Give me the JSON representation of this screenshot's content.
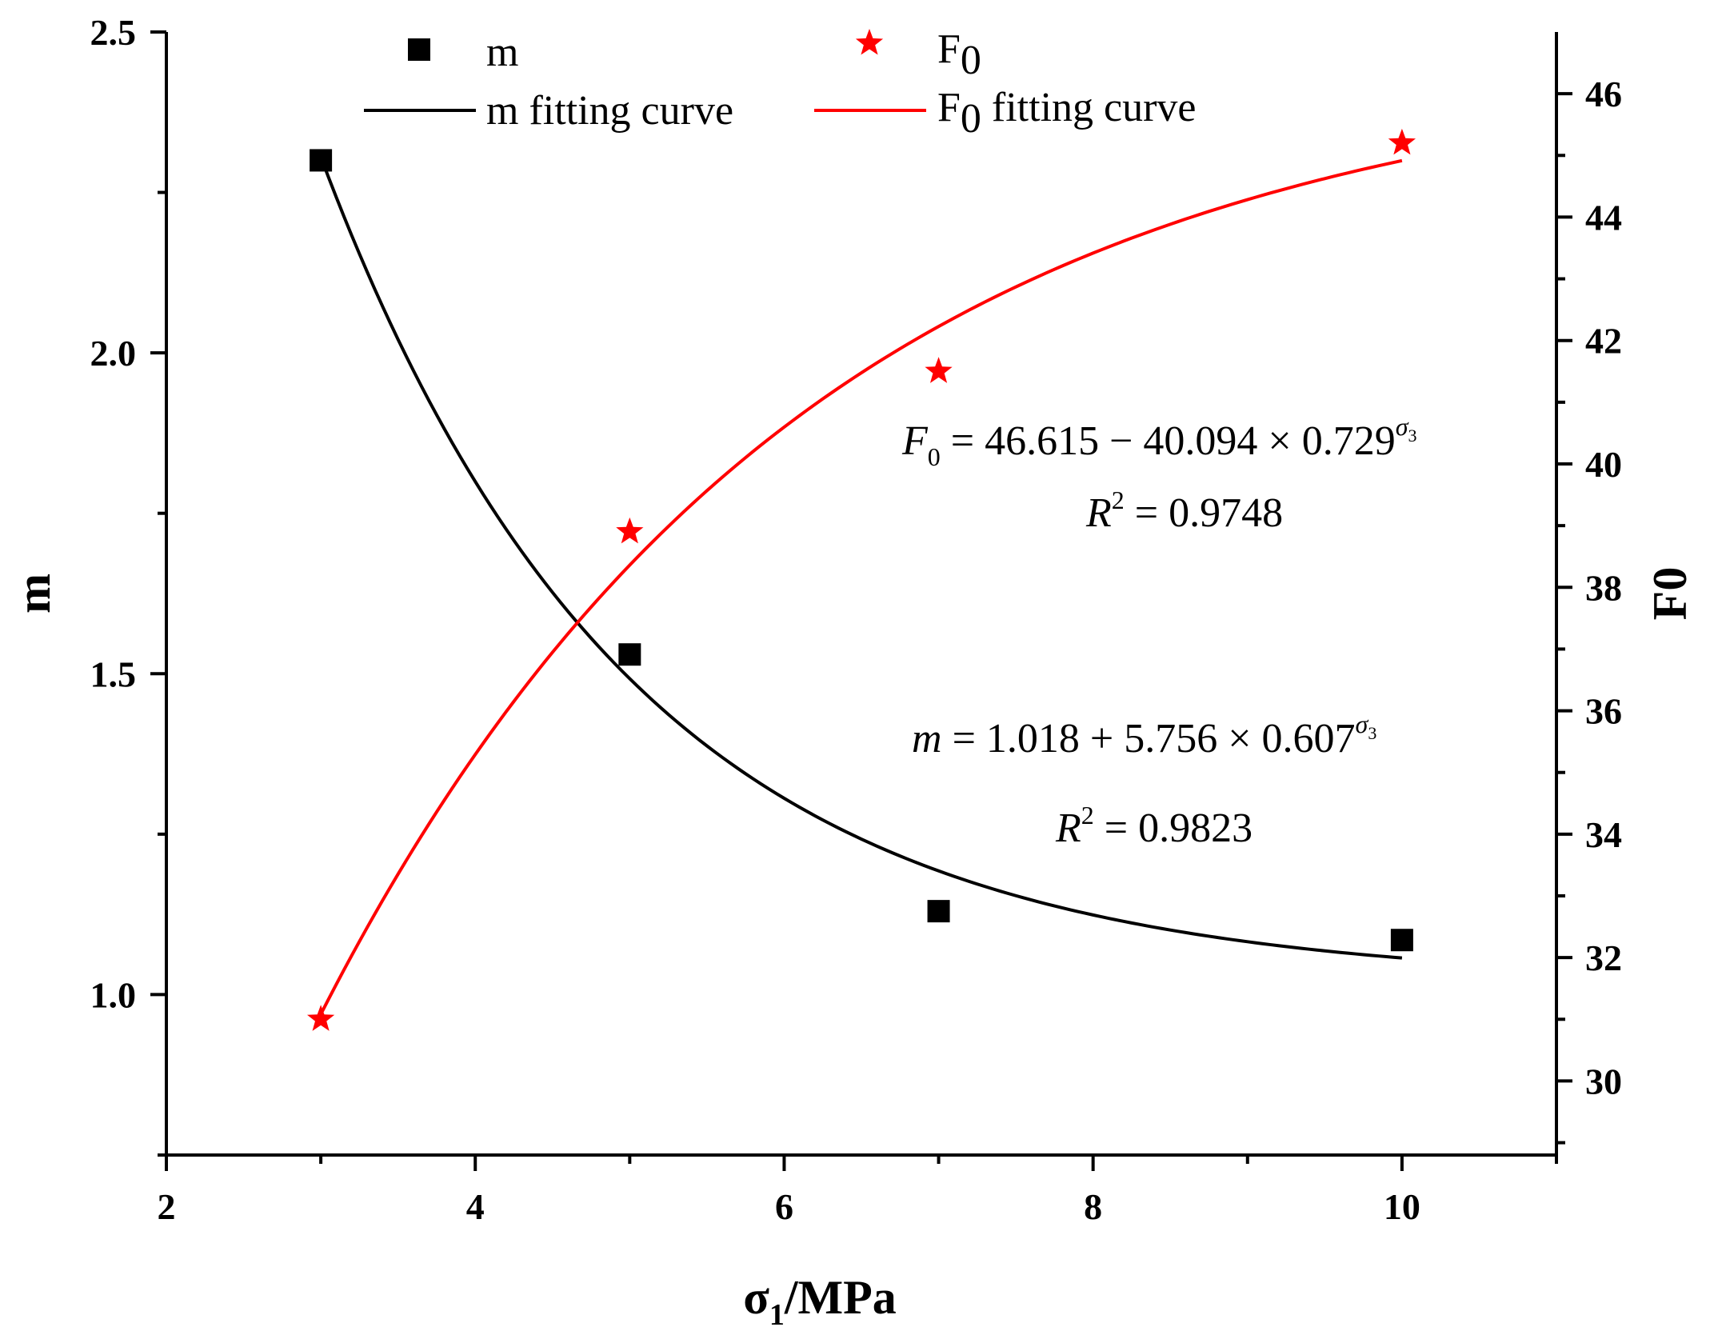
{
  "chart_data": {
    "type": "scatter",
    "x_axis": {
      "label_main": "σ",
      "label_sub": "1",
      "label_rest": "/MPa",
      "range": [
        2,
        11
      ],
      "major_ticks": [
        2,
        4,
        6,
        8,
        10
      ],
      "minor_step": 1
    },
    "y_left": {
      "label": "m",
      "range": [
        0.75,
        2.5
      ],
      "major_ticks": [
        1.0,
        1.5,
        2.0,
        2.5
      ],
      "tick_labels": [
        "1.0",
        "1.5",
        "2.0",
        "2.5"
      ],
      "minor_step": 0.25
    },
    "y_right": {
      "label_main": "F",
      "label_sub": "0",
      "range": [
        28.8,
        47
      ],
      "major_ticks": [
        30,
        32,
        34,
        36,
        38,
        40,
        42,
        44,
        46
      ],
      "minor_step": 1
    },
    "series": [
      {
        "name": "m",
        "axis": "left",
        "marker": "square",
        "color": "#000000",
        "x": [
          3,
          5,
          7,
          10
        ],
        "y": [
          2.3,
          1.53,
          1.13,
          1.085
        ]
      },
      {
        "name": "F0",
        "axis": "right",
        "marker": "star",
        "color": "#ff0000",
        "x": [
          3,
          5,
          7,
          10
        ],
        "y": [
          31.0,
          38.9,
          41.5,
          45.2
        ]
      }
    ],
    "fits": [
      {
        "name": "m fitting curve",
        "axis": "left",
        "color": "#000000",
        "a": 1.018,
        "b": 5.756,
        "c": 0.607,
        "x_range": [
          3,
          10
        ]
      },
      {
        "name": "F0 fitting curve",
        "axis": "right",
        "color": "#ff0000",
        "a": 46.615,
        "b": 40.094,
        "c": 0.729,
        "x_range": [
          3,
          10
        ]
      }
    ],
    "legend": {
      "m_marker": "m",
      "f_marker_main": "F",
      "f_marker_sub": "0",
      "m_curve": "m fitting curve",
      "f_curve_main": "F",
      "f_curve_sub": "0",
      "f_curve_rest": " fitting curve"
    },
    "annotations": {
      "f_eq": {
        "var": "F",
        "var_sub": "0",
        "rhs": " = 46.615 − 40.094 × 0.729",
        "exp": "σ",
        "exp_sub": "3",
        "r2_var": "R",
        "r2_sup": "2",
        "r2_rhs": " = 0.9748"
      },
      "m_eq": {
        "var": "m",
        "rhs": " = 1.018 + 5.756 × 0.607",
        "exp": "σ",
        "exp_sub": "3",
        "r2_var": "R",
        "r2_sup": "2",
        "r2_rhs": " = 0.9823"
      }
    }
  }
}
